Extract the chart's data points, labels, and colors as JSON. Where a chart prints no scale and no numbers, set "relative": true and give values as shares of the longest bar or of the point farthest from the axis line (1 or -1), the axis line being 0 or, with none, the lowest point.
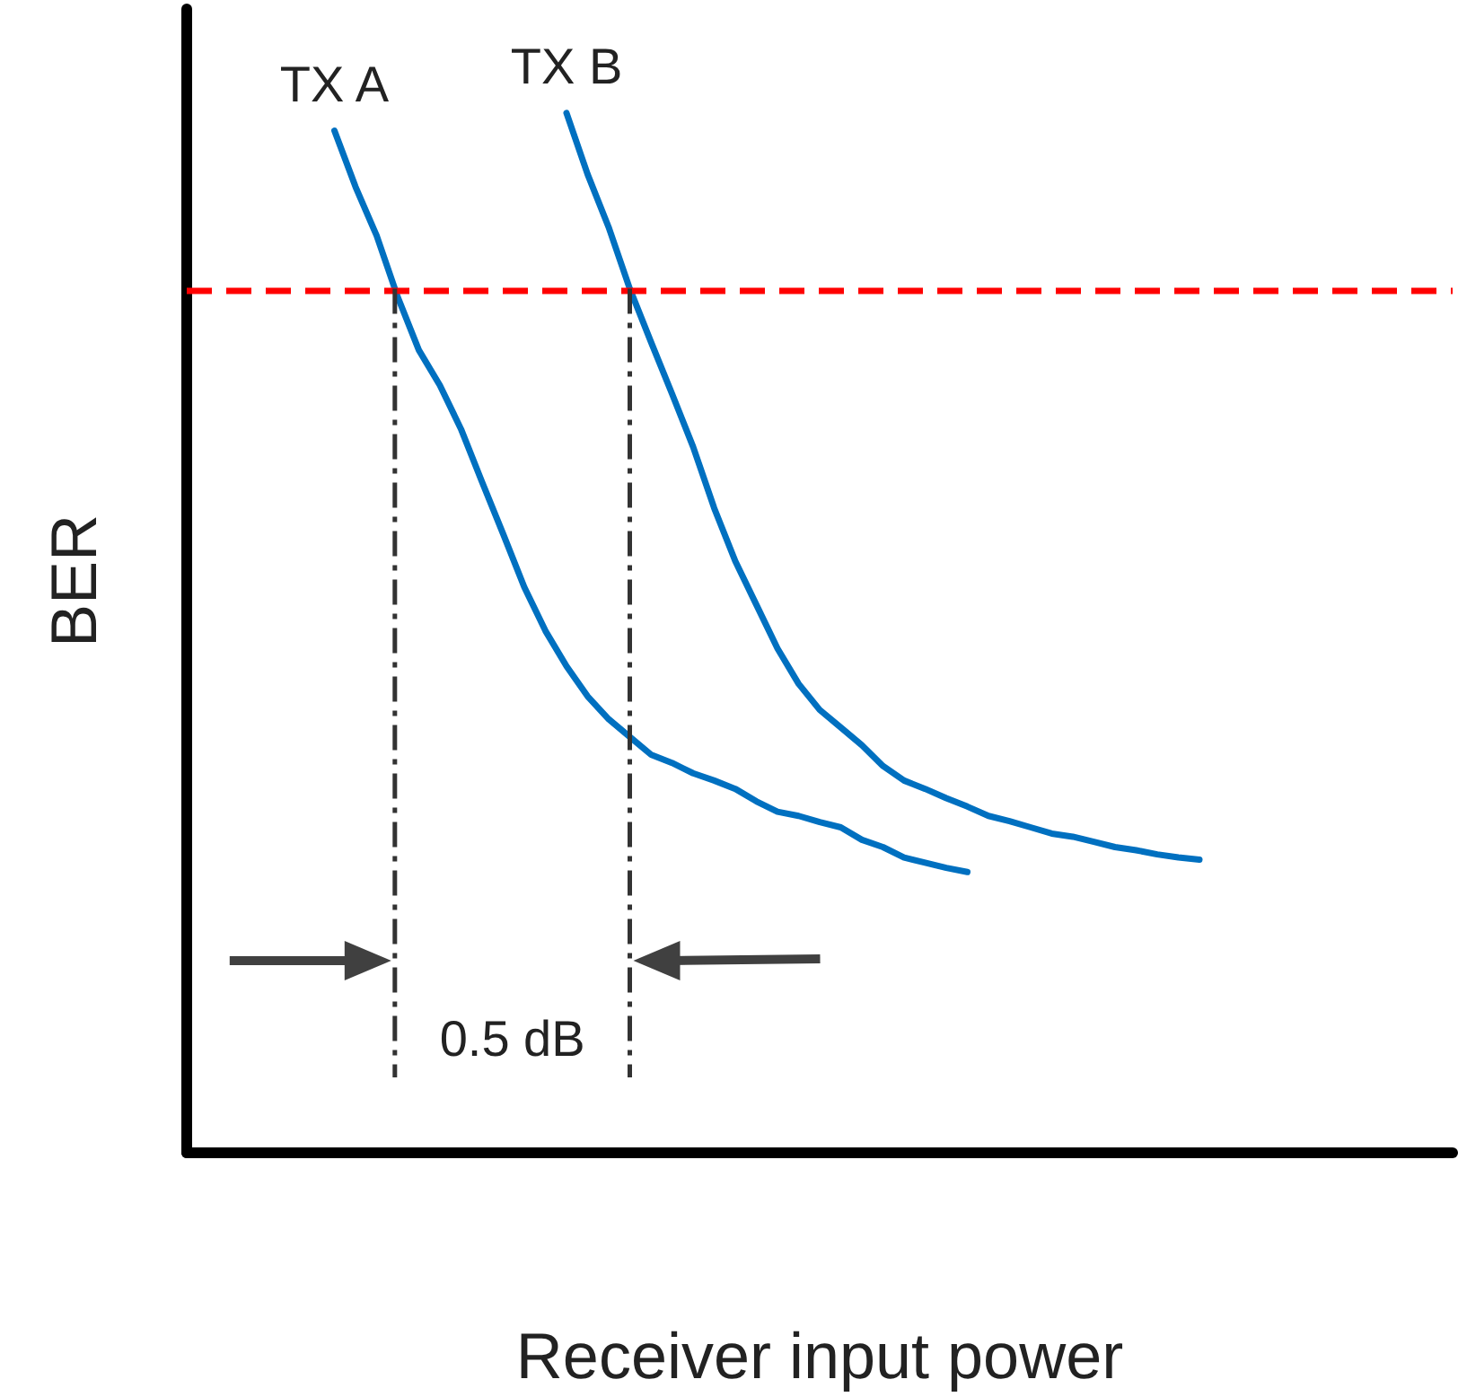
{
  "chart_data": {
    "type": "line",
    "relative": true,
    "xlabel": "Receiver input power",
    "ylabel": "BER",
    "legend": false,
    "grid": false,
    "marker": "none",
    "categories": [
      null,
      null,
      null,
      null,
      null,
      null,
      null,
      null,
      null,
      null,
      null,
      null,
      null,
      null,
      null,
      null,
      null,
      null,
      null,
      null,
      null,
      null,
      null,
      null,
      null,
      null,
      null,
      null,
      null,
      null,
      null,
      null,
      null,
      null,
      null,
      null,
      null,
      null,
      null,
      null,
      null,
      null,
      null,
      null,
      null,
      null,
      null,
      null,
      null,
      null,
      null,
      null,
      null,
      null,
      null,
      null,
      null,
      null,
      null,
      null,
      null
    ],
    "series": [
      {
        "name": "TX A",
        "color": "#0070c0",
        "values": [
          null,
          null,
          null,
          null,
          null,
          null,
          null,
          0.983,
          0.929,
          0.882,
          0.823,
          0.772,
          0.738,
          0.696,
          0.645,
          0.595,
          0.544,
          0.502,
          0.468,
          0.439,
          0.417,
          0.4,
          0.383,
          0.375,
          0.365,
          0.358,
          0.35,
          0.338,
          0.328,
          0.324,
          0.318,
          0.313,
          0.301,
          0.294,
          0.284,
          0.279,
          0.274,
          0.27,
          null,
          null,
          null,
          null,
          null,
          null,
          null,
          null,
          null,
          null,
          null,
          null,
          null,
          null,
          null,
          null,
          null,
          null,
          null,
          null,
          null,
          null,
          null
        ]
      },
      {
        "name": "TX B",
        "color": "#0070c0",
        "values": [
          null,
          null,
          null,
          null,
          null,
          null,
          null,
          null,
          null,
          null,
          null,
          null,
          null,
          null,
          null,
          null,
          null,
          null,
          1,
          0.941,
          0.89,
          0.831,
          0.78,
          0.73,
          0.679,
          0.62,
          0.569,
          0.527,
          0.485,
          0.451,
          0.426,
          0.409,
          0.392,
          0.372,
          0.358,
          0.35,
          0.341,
          0.333,
          0.324,
          0.319,
          0.313,
          0.307,
          0.304,
          0.299,
          0.294,
          0.291,
          0.287,
          0.284,
          0.282,
          null,
          null,
          null,
          null,
          null,
          null,
          null,
          null,
          null,
          null,
          null,
          null
        ]
      }
    ],
    "ref_lines": [
      {
        "axis": "y",
        "value": 0.831,
        "color": "#ff0000",
        "line_style": "dashed"
      }
    ],
    "annotations": [
      "0.5 dB"
    ]
  }
}
